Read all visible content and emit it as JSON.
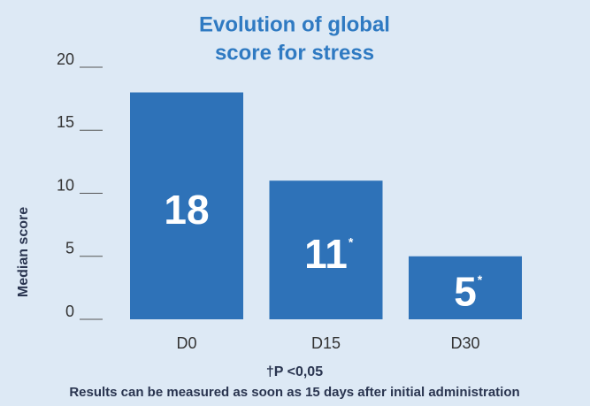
{
  "chart_data": {
    "type": "bar",
    "title_lines": [
      "Evolution of global",
      "score for stress"
    ],
    "ylabel": "Median score",
    "categories": [
      "D0",
      "D15",
      "D30"
    ],
    "values": [
      18,
      11,
      5
    ],
    "value_label_marks": [
      null,
      "*",
      "*"
    ],
    "color": "#2e72b8",
    "ylim": [
      0,
      20
    ],
    "yticks": [
      0,
      5,
      10,
      15,
      20
    ],
    "footnote": "†P <0,05",
    "caption": "Results can be measured as soon as 15 days after initial administration"
  }
}
